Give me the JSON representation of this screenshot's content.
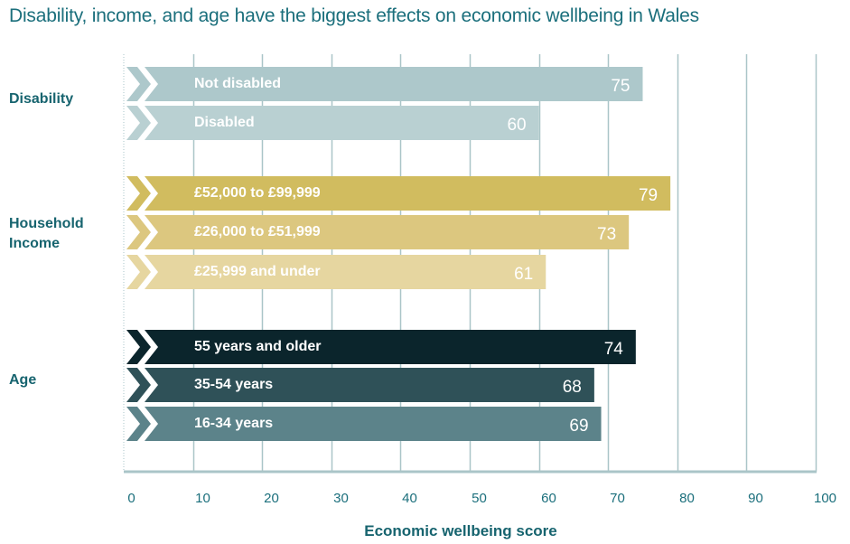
{
  "chart_data": {
    "type": "bar",
    "orientation": "horizontal",
    "title": "Disability, income, and age have the biggest effects on economic wellbeing in Wales",
    "xlabel": "Economic wellbeing score",
    "ylabel": "",
    "xlim": [
      0,
      100
    ],
    "xticks": [
      0,
      10,
      20,
      30,
      40,
      50,
      60,
      70,
      80,
      90,
      100
    ],
    "grid": true,
    "groups": [
      {
        "name": "Disability",
        "bars": [
          {
            "label": "Not disabled",
            "value": 75,
            "color": "#adc8cb"
          },
          {
            "label": "Disabled",
            "value": 60,
            "color": "#b9d0d2"
          }
        ]
      },
      {
        "name": "Household Income",
        "bars": [
          {
            "label": "£52,000 to £99,999",
            "value": 79,
            "color": "#d1bc5f"
          },
          {
            "label": "£26,000 to £51,999",
            "value": 73,
            "color": "#dcc77f"
          },
          {
            "label": "£25,999 and under",
            "value": 61,
            "color": "#e6d6a0"
          }
        ]
      },
      {
        "name": "Age",
        "bars": [
          {
            "label": "55 years and older",
            "value": 74,
            "color": "#0b252c"
          },
          {
            "label": "35-54 years",
            "value": 68,
            "color": "#2f5158"
          },
          {
            "label": "16-34 years",
            "value": 69,
            "color": "#5c838a"
          }
        ]
      }
    ],
    "colors": {
      "grid": "#aac5c8",
      "axis_text": "#1b6f7c",
      "title_text": "#1b6f7c",
      "group_label_text": "#17646f"
    }
  },
  "group_labels": {
    "disability": "Disability",
    "income_line1": "Household",
    "income_line2": "Income",
    "age": "Age"
  }
}
